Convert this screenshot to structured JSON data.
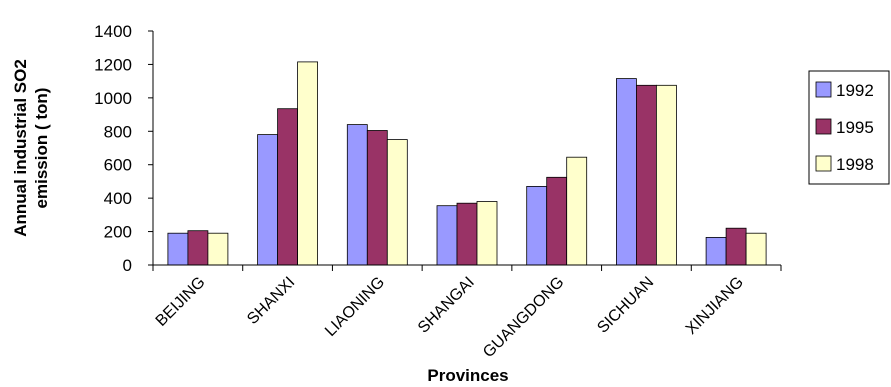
{
  "chart_data": {
    "type": "bar",
    "categories": [
      "BEIJING",
      "SHANXI",
      "LIAONING",
      "SHANGAI",
      "GUANGDONG",
      "SICHUAN",
      "XINJIANG"
    ],
    "series": [
      {
        "name": "1992",
        "color": "#9999ff",
        "values": [
          190,
          780,
          840,
          355,
          470,
          1115,
          165
        ]
      },
      {
        "name": "1995",
        "color": "#993366",
        "values": [
          205,
          935,
          805,
          370,
          525,
          1075,
          220
        ]
      },
      {
        "name": "1998",
        "color": "#ffffcc",
        "values": [
          190,
          1215,
          750,
          380,
          645,
          1075,
          190
        ]
      }
    ],
    "ylim": [
      0,
      1400
    ],
    "yticks": [
      "0",
      "200",
      "400",
      "600",
      "800",
      "1000",
      "1200",
      "1400"
    ],
    "ylabel_line1": "Annual industrial SO2",
    "ylabel_line2": "emission ( ton)",
    "xlabel": "Provinces",
    "grid": false,
    "legend_position": "right"
  }
}
